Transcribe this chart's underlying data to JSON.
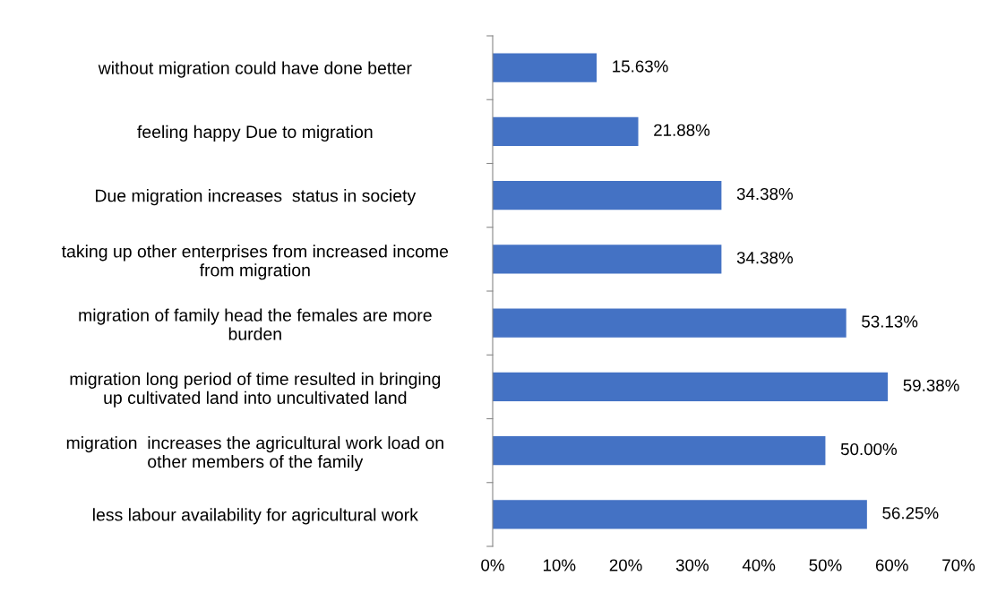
{
  "chart_data": {
    "type": "bar",
    "orientation": "horizontal",
    "categories": [
      "without migration could have done better",
      "feeling happy Due to migration",
      "Due migration increases  status in society",
      "taking up other enterprises from increased income\nfrom migration",
      "migration of family head the females are more\nburden",
      "migration long period of time resulted in bringing\nup cultivated land into uncultivated land",
      "migration  increases the agricultural work load on\nother members of the family",
      "less labour availability for agricultural work"
    ],
    "values": [
      15.63,
      21.88,
      34.38,
      34.38,
      53.13,
      59.38,
      50.0,
      56.25
    ],
    "value_labels": [
      "15.63%",
      "21.88%",
      "34.38%",
      "34.38%",
      "53.13%",
      "59.38%",
      "50.00%",
      "56.25%"
    ],
    "color": "#4472c4",
    "xlim": [
      0,
      70
    ],
    "xticks": [
      {
        "value": 0,
        "label": "0%"
      },
      {
        "value": 10,
        "label": "10%"
      },
      {
        "value": 20,
        "label": "20%"
      },
      {
        "value": 30,
        "label": "30%"
      },
      {
        "value": 40,
        "label": "40%"
      },
      {
        "value": 50,
        "label": "50%"
      },
      {
        "value": 60,
        "label": "60%"
      },
      {
        "value": 70,
        "label": "70%"
      }
    ],
    "grid": false,
    "legend": false
  }
}
